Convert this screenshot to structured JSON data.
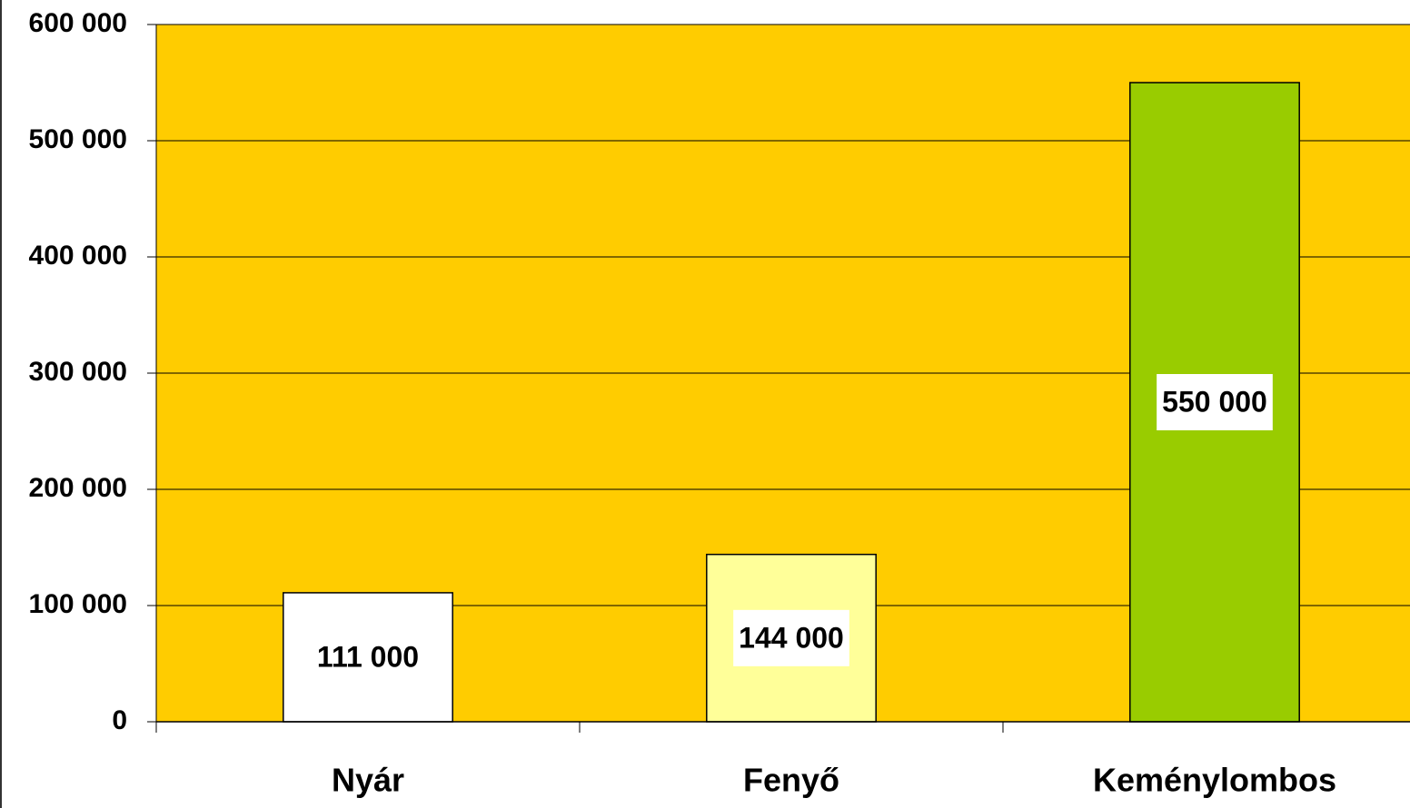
{
  "chart_data": {
    "type": "bar",
    "categories": [
      "Nyár",
      "Fenyő",
      "Keménylombos"
    ],
    "values": [
      111000,
      144000,
      550000
    ],
    "value_labels": [
      "111 000",
      "144 000",
      "550 000"
    ],
    "colors": [
      "#ffffff",
      "#ffff99",
      "#99cc00"
    ],
    "background": "#ffcc00",
    "ylim": [
      0,
      600000
    ],
    "yticks": [
      0,
      {
        "value": 100000,
        "label": "100 000"
      },
      {
        "value": 200000,
        "label": "200 000"
      },
      {
        "value": 300000,
        "label": "300 000"
      },
      {
        "value": 400000,
        "label": "400 000"
      },
      {
        "value": 500000,
        "label": "500 000"
      },
      {
        "value": 600000,
        "label": "600 000"
      }
    ],
    "grid": true
  }
}
